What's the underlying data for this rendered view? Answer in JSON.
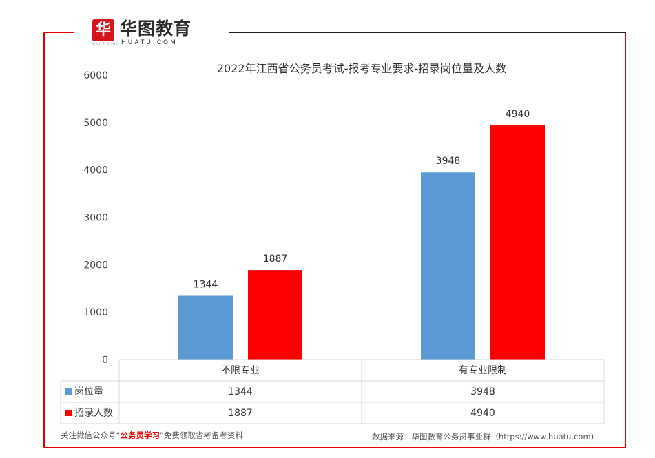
{
  "logo": {
    "mark": "华",
    "name": "华图教育",
    "domain": "HUATU.COM",
    "since": "SINCE 2001"
  },
  "footer": {
    "left_prefix": "关注微信公众号“",
    "left_highlight": "公务员学习",
    "left_suffix": "”免费领取省考备考资料",
    "right": "数据来源：华图教育公务员事业群（https://www.huatu.com)"
  },
  "colors": {
    "series_1": "#5b9bd5",
    "series_2": "#ff0000",
    "frame": "#e00000"
  },
  "chart_data": {
    "type": "bar",
    "title": "2022年江西省公务员考试-报考专业要求-招录岗位量及人数",
    "categories": [
      "不限专业",
      "有专业限制"
    ],
    "series": [
      {
        "name": "岗位量",
        "values": [
          1344,
          3948
        ]
      },
      {
        "name": "招录人数",
        "values": [
          1887,
          4940
        ]
      }
    ],
    "ylim": [
      0,
      6000
    ],
    "yticks": [
      0,
      1000,
      2000,
      3000,
      4000,
      5000,
      6000
    ],
    "grid": false,
    "legend": "data-table",
    "data_labels": true
  }
}
